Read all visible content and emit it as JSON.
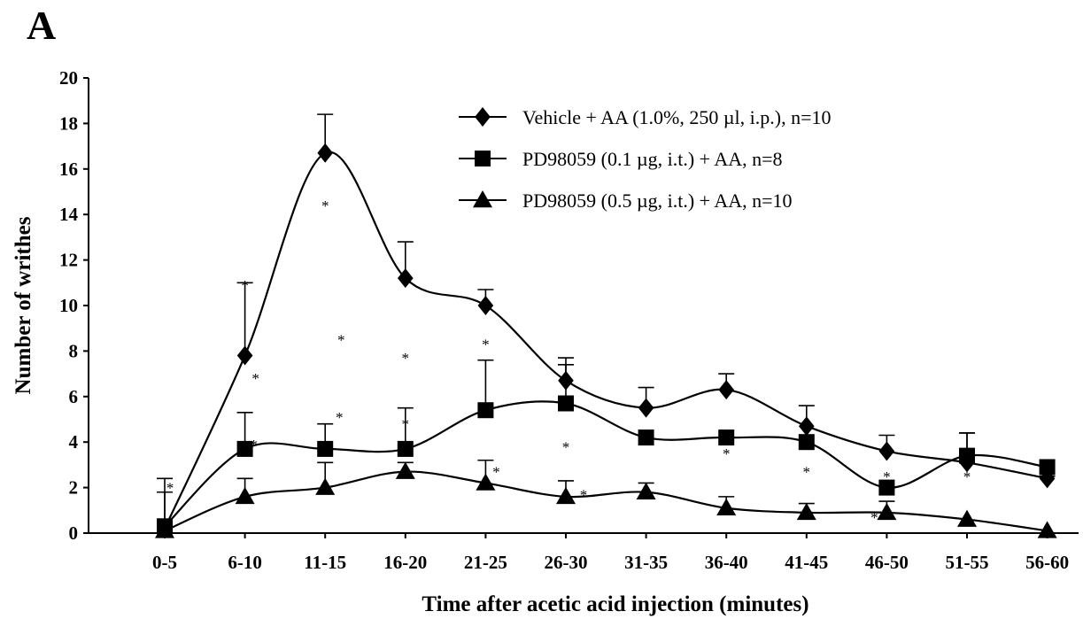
{
  "panel_label": "A",
  "chart_data": {
    "type": "line",
    "title": "",
    "xlabel": "Time after acetic acid injection (minutes)",
    "ylabel": "Number of writhes",
    "categories": [
      "0-5",
      "6-10",
      "11-15",
      "16-20",
      "21-25",
      "26-30",
      "31-35",
      "36-40",
      "41-45",
      "46-50",
      "51-55",
      "56-60"
    ],
    "ylim": [
      0,
      20
    ],
    "yticks": [
      "0",
      "2",
      "4",
      "6",
      "8",
      "10",
      "12",
      "14",
      "16",
      "18",
      "20"
    ],
    "grid": false,
    "legend_position": "top-right",
    "series": [
      {
        "name": "Vehicle + AA (1.0%, 250 µl, i.p.), n=10",
        "marker": "diamond",
        "values": [
          0.2,
          7.8,
          16.7,
          11.2,
          10.0,
          6.7,
          5.5,
          6.3,
          4.7,
          3.6,
          3.1,
          2.4
        ],
        "error_top": [
          2.4,
          11.0,
          18.4,
          12.8,
          10.7,
          7.7,
          6.4,
          7.0,
          5.6,
          4.3,
          4.4,
          2.5
        ]
      },
      {
        "name": "PD98059 (0.1 µg, i.t.) + AA, n=8",
        "marker": "square",
        "values": [
          0.3,
          3.7,
          3.7,
          3.7,
          5.4,
          5.7,
          4.2,
          4.2,
          4.0,
          2.0,
          3.4,
          2.9
        ],
        "error_top": [
          1.8,
          5.3,
          4.8,
          5.5,
          7.6,
          7.4,
          4.2,
          4.2,
          4.0,
          2.0,
          4.4,
          2.9
        ]
      },
      {
        "name": "PD98059 (0.5 µg, i.t.) + AA, n=10",
        "marker": "triangle",
        "values": [
          0.1,
          1.6,
          2.0,
          2.7,
          2.2,
          1.6,
          1.8,
          1.1,
          0.9,
          0.9,
          0.6,
          0.1
        ],
        "error_top": [
          0.1,
          2.4,
          3.1,
          3.1,
          3.2,
          2.3,
          2.2,
          1.6,
          1.3,
          1.4,
          0.6,
          0.1
        ]
      }
    ],
    "annotations": [
      {
        "text": "*",
        "x": "0-5",
        "y": 2.0
      },
      {
        "text": "*",
        "x": "6-10",
        "y": 10.9
      },
      {
        "text": "*",
        "x": "6-10",
        "y": 6.8
      },
      {
        "text": "*",
        "x": "6-10",
        "y": 3.9
      },
      {
        "text": "*",
        "x": "11-15",
        "y": 14.4
      },
      {
        "text": "*",
        "x": "11-15",
        "y": 8.5
      },
      {
        "text": "*",
        "x": "11-15",
        "y": 5.1
      },
      {
        "text": "*",
        "x": "16-20",
        "y": 7.7
      },
      {
        "text": "*",
        "x": "16-20",
        "y": 4.8
      },
      {
        "text": "*",
        "x": "21-25",
        "y": 8.3
      },
      {
        "text": "*",
        "x": "21-25",
        "y": 2.7
      },
      {
        "text": "*",
        "x": "26-30",
        "y": 3.8
      },
      {
        "text": "*",
        "x": "26-30",
        "y": 1.7
      },
      {
        "text": "*",
        "x": "36-40",
        "y": 3.5
      },
      {
        "text": "*",
        "x": "41-45",
        "y": 2.7
      },
      {
        "text": "*",
        "x": "46-50",
        "y": 2.5
      },
      {
        "text": "*",
        "x": "46-50",
        "y": 0.7
      },
      {
        "text": "*",
        "x": "51-55",
        "y": 2.5
      }
    ]
  }
}
